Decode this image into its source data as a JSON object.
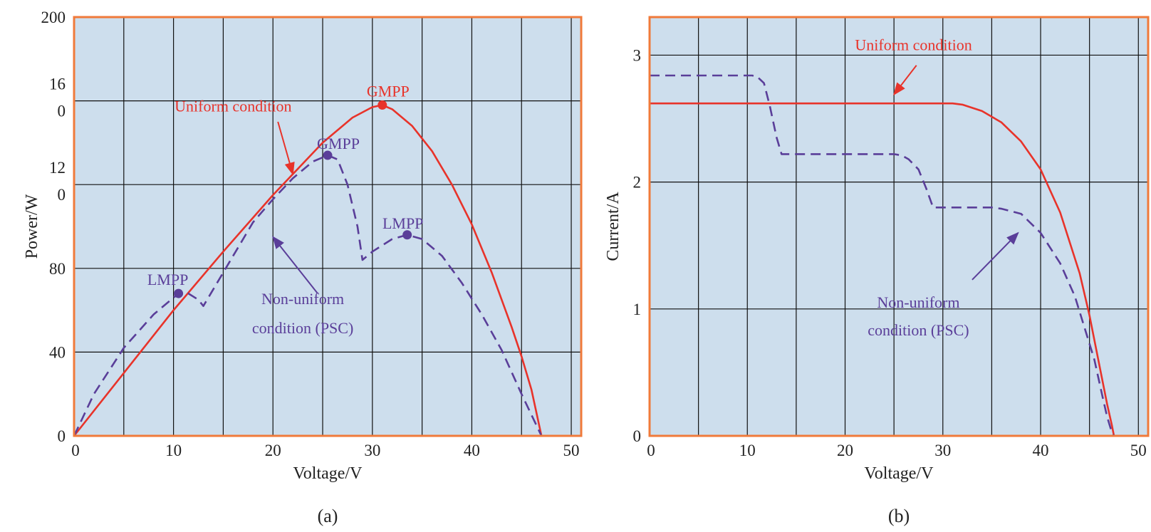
{
  "colors": {
    "plot_bg": "#cddeed",
    "frame": "#f07a3a",
    "grid": "#111111",
    "uniform": "#e8332a",
    "psc": "#5a3e99",
    "text": "#222222"
  },
  "chart_data": [
    {
      "id": "a",
      "type": "line",
      "panel_label": "(a)",
      "title": "",
      "xlabel": "Voltage/V",
      "ylabel": "Power/W",
      "xlim": [
        0,
        51
      ],
      "ylim": [
        0,
        200
      ],
      "x_ticks": [
        0,
        10,
        20,
        30,
        40,
        50
      ],
      "x_tick_labels": [
        "0",
        "10",
        "20",
        "30",
        "40",
        "50"
      ],
      "x_gridlines": [
        5,
        10,
        15,
        20,
        25,
        30,
        35,
        40,
        45,
        50
      ],
      "y_gridlines": [
        40,
        80,
        120,
        160
      ],
      "y_tick_labels": [
        {
          "value": 0,
          "lines": [
            "0"
          ]
        },
        {
          "value": 40,
          "lines": [
            "40"
          ]
        },
        {
          "value": 80,
          "lines": [
            "80"
          ]
        },
        {
          "value": 120,
          "lines": [
            "12",
            "0"
          ]
        },
        {
          "value": 160,
          "lines": [
            "16",
            "0"
          ]
        },
        {
          "value": 200,
          "lines": [
            "200"
          ]
        }
      ],
      "grid": true,
      "series": [
        {
          "name": "Uniform condition",
          "style": "solid",
          "color_key": "uniform",
          "x": [
            0,
            5,
            10,
            15,
            20,
            25,
            28,
            30,
            31,
            32,
            34,
            36,
            38,
            40,
            42,
            44,
            45,
            46,
            47
          ],
          "y": [
            0,
            30,
            60,
            88,
            115,
            140,
            152,
            157,
            158,
            156,
            148,
            136,
            120,
            101,
            78,
            52,
            38,
            22,
            0
          ]
        },
        {
          "name": "Non-uniform condition (PSC)",
          "style": "dashed",
          "color_key": "psc",
          "x": [
            0,
            2,
            5,
            8,
            10,
            10.5,
            11.5,
            12.5,
            13,
            15,
            18,
            20,
            22,
            24,
            25.5,
            26.5,
            27.5,
            28.5,
            29,
            30,
            32,
            33.5,
            35,
            37,
            39,
            41,
            43,
            45,
            46,
            47
          ],
          "y": [
            0,
            20,
            42,
            58,
            66,
            68,
            68,
            65,
            62,
            78,
            102,
            113,
            123,
            131,
            134,
            132,
            120,
            100,
            84,
            88,
            94,
            96,
            94,
            86,
            73,
            58,
            41,
            20,
            10,
            0
          ]
        }
      ],
      "points": [
        {
          "label": "GMPP",
          "x": 31,
          "y": 158,
          "color_key": "uniform",
          "label_dx": 8,
          "label_dy": -12
        },
        {
          "label": "GMPP",
          "x": 25.5,
          "y": 134,
          "color_key": "psc",
          "label_dx": 15,
          "label_dy": -9
        },
        {
          "label": "LMPP",
          "x": 33.5,
          "y": 96,
          "color_key": "psc",
          "label_dx": -6,
          "label_dy": -9
        },
        {
          "label": "LMPP",
          "x": 10.5,
          "y": 68,
          "color_key": "psc",
          "label_dx": -15,
          "label_dy": -12
        }
      ],
      "annotations": [
        {
          "lines": [
            "Uniform condition"
          ],
          "color_key": "uniform",
          "x": 16,
          "y": 155,
          "align": "middle",
          "arrow": {
            "from": [
              20.5,
              150
            ],
            "to": [
              22,
              125
            ]
          }
        },
        {
          "lines": [
            "Non-uniform",
            "condition (PSC)"
          ],
          "color_key": "psc",
          "x": 23,
          "y": 63,
          "align": "middle",
          "line_step": 14,
          "arrow": {
            "from": [
              24.5,
              68
            ],
            "to": [
              20,
              95
            ]
          }
        }
      ]
    },
    {
      "id": "b",
      "type": "line",
      "panel_label": "(b)",
      "title": "",
      "xlabel": "Voltage/V",
      "ylabel": "Current/A",
      "xlim": [
        0,
        51
      ],
      "ylim": [
        0,
        3.3
      ],
      "x_ticks": [
        0,
        10,
        20,
        30,
        40,
        50
      ],
      "x_tick_labels": [
        "0",
        "10",
        "20",
        "30",
        "40",
        "50"
      ],
      "x_gridlines": [
        5,
        10,
        15,
        20,
        25,
        30,
        35,
        40,
        45,
        50
      ],
      "y_gridlines": [
        1,
        2,
        3
      ],
      "y_tick_labels": [
        {
          "value": 0,
          "lines": [
            "0"
          ]
        },
        {
          "value": 1,
          "lines": [
            "1"
          ]
        },
        {
          "value": 2,
          "lines": [
            "2"
          ]
        },
        {
          "value": 3,
          "lines": [
            "3"
          ]
        }
      ],
      "grid": true,
      "series": [
        {
          "name": "Uniform condition",
          "style": "solid",
          "color_key": "uniform",
          "x": [
            0,
            31,
            32,
            34,
            36,
            38,
            40,
            42,
            44,
            45,
            46,
            46.8,
            47.3,
            47.5
          ],
          "y": [
            2.62,
            2.62,
            2.61,
            2.56,
            2.47,
            2.32,
            2.1,
            1.76,
            1.28,
            0.95,
            0.56,
            0.25,
            0.08,
            0
          ]
        },
        {
          "name": "Non-uniform condition (PSC)",
          "style": "dashed",
          "color_key": "psc",
          "x": [
            0,
            10.5,
            11,
            11.7,
            12.3,
            13,
            13.5,
            20,
            25,
            25.8,
            26.5,
            27.5,
            28.3,
            29,
            35,
            36,
            38,
            40,
            42,
            43.5,
            44.5,
            45.5,
            46.3,
            46.8,
            47.2,
            47.5
          ],
          "y": [
            2.84,
            2.84,
            2.83,
            2.78,
            2.6,
            2.35,
            2.22,
            2.22,
            2.22,
            2.21,
            2.18,
            2.1,
            1.95,
            1.8,
            1.8,
            1.79,
            1.75,
            1.6,
            1.36,
            1.1,
            0.85,
            0.6,
            0.32,
            0.15,
            0.05,
            0
          ]
        }
      ],
      "points": [],
      "annotations": [
        {
          "lines": [
            "Uniform condition"
          ],
          "color_key": "uniform",
          "x": 27,
          "y": 3.04,
          "align": "middle",
          "arrow": {
            "from": [
              27.3,
              2.92
            ],
            "to": [
              25,
              2.69
            ]
          }
        },
        {
          "lines": [
            "Non-uniform",
            "condition (PSC)"
          ],
          "color_key": "psc",
          "x": 27.5,
          "y": 1.01,
          "align": "middle",
          "line_step": 0.22,
          "arrow": {
            "from": [
              33,
              1.23
            ],
            "to": [
              37.7,
              1.6
            ]
          }
        }
      ]
    }
  ]
}
